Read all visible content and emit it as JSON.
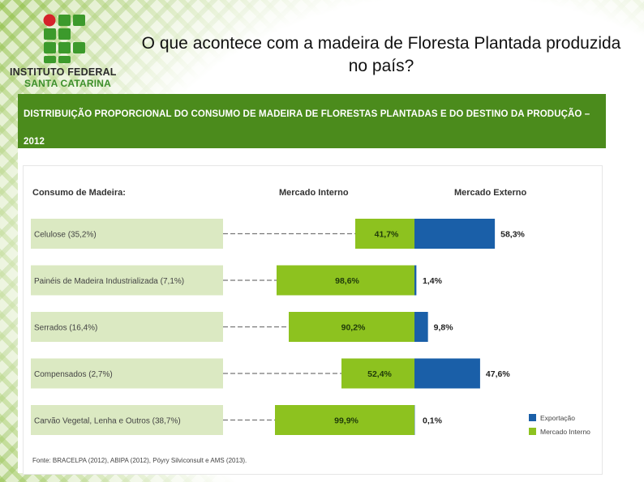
{
  "logo": {
    "line1": "INSTITUTO FEDERAL",
    "line2": "SANTA CATARINA",
    "colors": {
      "green": "#3c9a2c",
      "red": "#d5232a"
    }
  },
  "slide": {
    "title": "O que acontece com a madeira de Floresta Plantada produzida no país?"
  },
  "chart_data": {
    "type": "bar",
    "title": "DISTRIBUIÇÃO PROPORCIONAL DO CONSUMO DE MADEIRA DE FLORESTAS PLANTADAS E DO DESTINO DA PRODUÇÃO – 2012",
    "column_headers": {
      "consumo": "Consumo de Madeira:",
      "interno": "Mercado Interno",
      "externo": "Mercado Externo"
    },
    "categories": [
      "Celulose (35,2%)",
      "Painéis de Madeira Industrializada (7,1%)",
      "Serrados (16,4%)",
      "Compensados (2,7%)",
      "Carvão Vegetal, Lenha e Outros (38,7%)"
    ],
    "series": [
      {
        "name": "Mercado Interno",
        "color": "#8dc21f",
        "values": [
          41.7,
          98.6,
          90.2,
          52.4,
          99.9
        ],
        "labels": [
          "41,7%",
          "98,6%",
          "90,2%",
          "52,4%",
          "99,9%"
        ]
      },
      {
        "name": "Exportação",
        "color": "#1a5fa8",
        "values": [
          58.3,
          1.4,
          9.8,
          47.6,
          0.1
        ],
        "labels": [
          "58,3%",
          "1,4%",
          "9,8%",
          "47,6%",
          "0,1%"
        ]
      }
    ],
    "stacked": true,
    "legend_position": "bottom-right",
    "source": "Fonte: BRACELPA (2012), ABIPA (2012), Pöyry Silviconsult e AMS (2013).",
    "colors": {
      "header": "#4b8b1c",
      "category_box": "#dbe9c2"
    }
  }
}
